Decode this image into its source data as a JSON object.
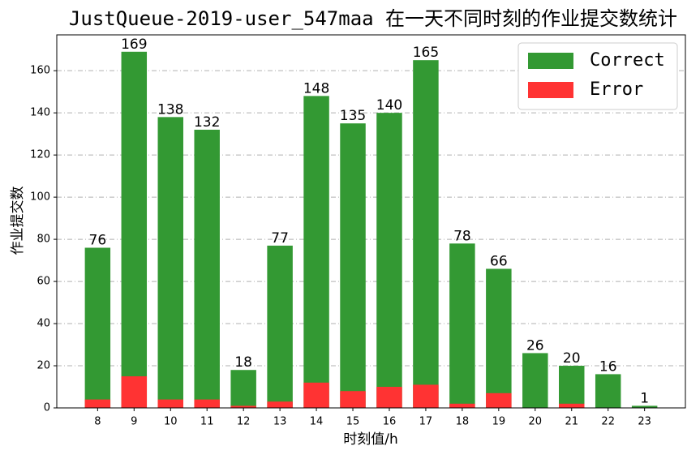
{
  "chart_data": {
    "type": "bar",
    "title": "JustQueue-2019-user_547maa 在一天不同时刻的作业提交数统计",
    "xlabel": "时刻值/h",
    "ylabel": "作业提交数",
    "x": [
      8,
      9,
      10,
      11,
      12,
      13,
      14,
      15,
      16,
      17,
      18,
      19,
      20,
      21,
      22,
      23
    ],
    "series": [
      {
        "name": "Correct",
        "color": "#339933",
        "values": [
          76,
          169,
          138,
          132,
          18,
          77,
          148,
          135,
          140,
          165,
          78,
          66,
          26,
          20,
          16,
          1
        ]
      },
      {
        "name": "Error",
        "color": "#ff3333",
        "values": [
          4,
          15,
          4,
          4,
          1,
          3,
          12,
          8,
          10,
          11,
          2,
          7,
          0,
          2,
          0,
          0
        ]
      }
    ],
    "xlim": [
      6.88,
      24.12
    ],
    "xticks": [
      8,
      9,
      10,
      11,
      12,
      13,
      14,
      15,
      16,
      17,
      18,
      19,
      20,
      21,
      22,
      23
    ],
    "ylim": [
      0,
      177
    ],
    "yticks": [
      0,
      20,
      40,
      60,
      80,
      100,
      120,
      140,
      160
    ],
    "grid": true,
    "legend": "upper right"
  }
}
